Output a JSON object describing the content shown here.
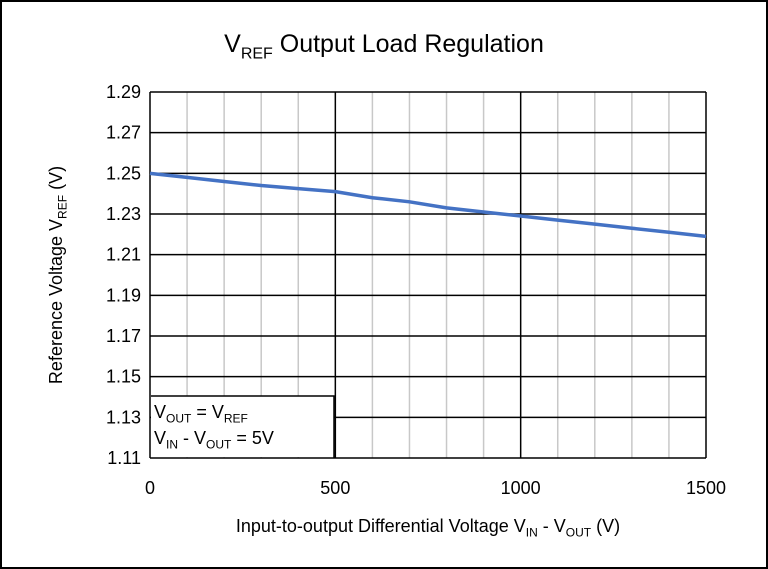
{
  "chart_data": {
    "type": "line",
    "title": [
      {
        "text": "V"
      },
      {
        "text": "REF",
        "sub": true
      },
      {
        "text": " Output Load Regulation"
      }
    ],
    "y_label": [
      {
        "text": "Reference Voltage V"
      },
      {
        "text": "REF",
        "sub": true
      },
      {
        "text": " (V)"
      }
    ],
    "x_label": [
      {
        "text": "Input-to-output Differential Voltage V"
      },
      {
        "text": "IN",
        "sub": true
      },
      {
        "text": " - V"
      },
      {
        "text": "OUT",
        "sub": true
      },
      {
        "text": " (V)"
      }
    ],
    "annotations": [
      [
        {
          "text": "V"
        },
        {
          "text": "OUT",
          "sub": true
        },
        {
          "text": " = V"
        },
        {
          "text": "REF",
          "sub": true
        }
      ],
      [
        {
          "text": "V"
        },
        {
          "text": "IN",
          "sub": true
        },
        {
          "text": " - V"
        },
        {
          "text": "OUT",
          "sub": true
        },
        {
          "text": " = 5V"
        }
      ]
    ],
    "x": [
      0,
      50,
      100,
      200,
      300,
      400,
      500,
      600,
      700,
      800,
      900,
      1000,
      1100,
      1200,
      1300,
      1400,
      1500
    ],
    "series": [
      {
        "color": "#4472c4",
        "values": [
          1.25,
          1.249,
          1.248,
          1.246,
          1.244,
          1.2425,
          1.241,
          1.238,
          1.236,
          1.233,
          1.231,
          1.229,
          1.227,
          1.225,
          1.223,
          1.221,
          1.219
        ]
      }
    ],
    "xlim": [
      0,
      1500
    ],
    "xticks": [
      0,
      500,
      1000,
      1500
    ],
    "xminorticks": [
      100,
      200,
      300,
      400,
      600,
      700,
      800,
      900,
      1100,
      1200,
      1300,
      1400
    ],
    "ylim": [
      1.11,
      1.29
    ],
    "yticks": [
      1.11,
      1.13,
      1.15,
      1.17,
      1.19,
      1.21,
      1.23,
      1.25,
      1.27,
      1.29
    ],
    "grid": true
  }
}
